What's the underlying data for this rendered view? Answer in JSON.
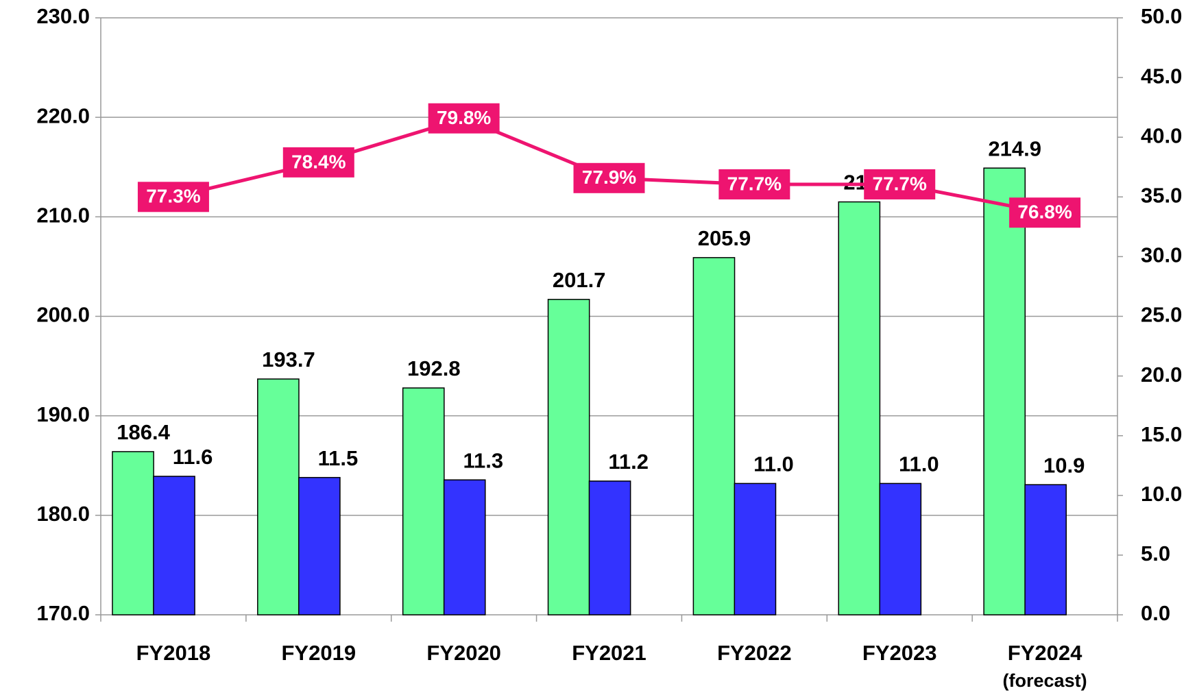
{
  "chart_data": {
    "type": "bar",
    "categories": [
      "FY2018",
      "FY2019",
      "FY2020",
      "FY2021",
      "FY2022",
      "FY2023",
      "FY2024"
    ],
    "category_notes": [
      null,
      null,
      null,
      null,
      null,
      null,
      "(forecast)"
    ],
    "series": [
      {
        "name": null,
        "type": "bar",
        "color": "#66ff99",
        "axis": "y",
        "values": [
          186.4,
          193.7,
          192.8,
          201.7,
          205.9,
          211.5,
          214.9
        ]
      },
      {
        "name": null,
        "type": "bar",
        "color": "#3333ff",
        "axis": "y2",
        "values": [
          11.6,
          11.5,
          11.3,
          11.2,
          11.0,
          11.0,
          10.9
        ],
        "value_labels": [
          "11.6",
          "11.5",
          "11.3",
          "11.2",
          "11.0",
          "11.0",
          "10.9"
        ]
      },
      {
        "name": null,
        "type": "line",
        "color": "#ee1470",
        "axis": "y3",
        "values": [
          77.3,
          78.4,
          79.8,
          77.9,
          77.7,
          77.7,
          76.8
        ],
        "value_labels": [
          "77.3%",
          "78.4%",
          "79.8%",
          "77.9%",
          "77.7%",
          "77.7%",
          "76.8%"
        ]
      }
    ],
    "ylim": [
      170,
      230
    ],
    "yticks": [
      {
        "value": 170,
        "label": "170.0"
      },
      {
        "value": 180,
        "label": "180.0"
      },
      {
        "value": 190,
        "label": "190.0"
      },
      {
        "value": 200,
        "label": "200.0"
      },
      {
        "value": 210,
        "label": "210.0"
      },
      {
        "value": 220,
        "label": "220.0"
      },
      {
        "value": 230,
        "label": "230.0"
      }
    ],
    "y2lim": [
      0,
      50
    ],
    "y2ticks": [
      {
        "value": 0,
        "label": "0.0"
      },
      {
        "value": 5,
        "label": "5.0"
      },
      {
        "value": 10,
        "label": "10.0"
      },
      {
        "value": 15,
        "label": "15.0"
      },
      {
        "value": 20,
        "label": "20.0"
      },
      {
        "value": 25,
        "label": "25.0"
      },
      {
        "value": 30,
        "label": "30.0"
      },
      {
        "value": 35,
        "label": "35.0"
      },
      {
        "value": 40,
        "label": "40.0"
      },
      {
        "value": 45,
        "label": "45.0"
      },
      {
        "value": 50,
        "label": "50.0"
      }
    ],
    "y3lim": [
      64,
      83
    ],
    "grid": true
  }
}
